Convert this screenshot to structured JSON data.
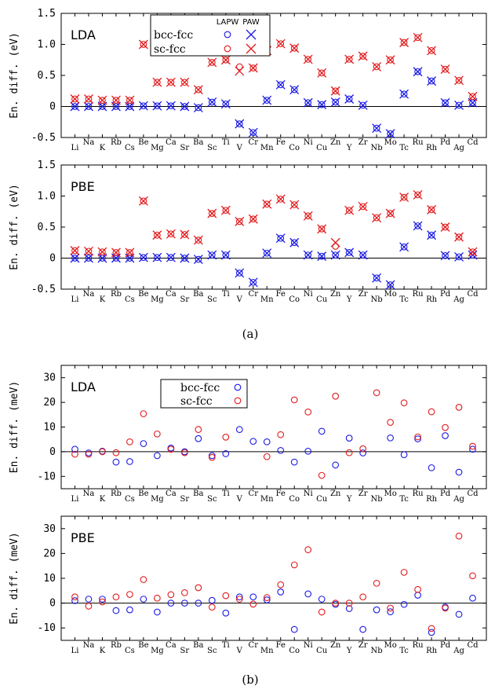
{
  "colors": {
    "blue": "#1a1ae6",
    "red": "#e31a1c",
    "axis": "#000000"
  },
  "captions": {
    "a": "(a)",
    "b": "(b)"
  },
  "chart_data": [
    {
      "type": "scatter",
      "panel": "a-top",
      "title": "LDA",
      "ylabel": "En. diff. (eV)",
      "ylim": [
        -0.5,
        1.5
      ],
      "yticks": [
        -0.5,
        0,
        0.5,
        1.0,
        1.5
      ],
      "ytick_labels": [
        "-0.5",
        "0",
        "0.5",
        "1.0",
        "1.5"
      ],
      "categories": [
        "Li",
        "Na",
        "K",
        "Rb",
        "Cs",
        "Be",
        "Mg",
        "Ca",
        "Sr",
        "Ba",
        "Sc",
        "Ti",
        "V",
        "Cr",
        "Mn",
        "Fe",
        "Co",
        "Ni",
        "Cu",
        "Zn",
        "Y",
        "Zr",
        "Nb",
        "Mo",
        "Tc",
        "Ru",
        "Rh",
        "Pd",
        "Ag",
        "Cd"
      ],
      "legend": {
        "headers": [
          "LAPW",
          "PAW"
        ],
        "entries": [
          "bcc-fcc",
          "sc-fcc"
        ],
        "position": "top-center"
      },
      "series": [
        {
          "name": "bcc-fcc",
          "method": "LAPW",
          "marker": "circle",
          "color": "blue",
          "values": [
            0.0,
            0.0,
            0.0,
            0.0,
            0.0,
            0.01,
            0.01,
            0.01,
            0.0,
            -0.02,
            0.07,
            0.04,
            -0.28,
            -0.42,
            0.1,
            0.35,
            0.27,
            0.06,
            0.03,
            0.07,
            0.12,
            0.02,
            -0.35,
            -0.44,
            0.2,
            0.56,
            0.41,
            0.06,
            0.02,
            0.06
          ]
        },
        {
          "name": "bcc-fcc",
          "method": "PAW",
          "marker": "x",
          "color": "blue",
          "values": [
            0.0,
            0.0,
            0.0,
            0.0,
            0.0,
            0.01,
            0.01,
            0.01,
            0.0,
            -0.02,
            0.07,
            0.04,
            -0.28,
            -0.42,
            0.1,
            0.35,
            0.27,
            0.06,
            0.03,
            0.07,
            0.12,
            0.02,
            -0.35,
            -0.44,
            0.2,
            0.56,
            0.41,
            0.06,
            0.02,
            0.06
          ]
        },
        {
          "name": "sc-fcc",
          "method": "LAPW",
          "marker": "circle",
          "color": "red",
          "values": [
            0.12,
            0.12,
            0.1,
            0.1,
            0.1,
            1.0,
            0.39,
            0.39,
            0.39,
            0.27,
            0.71,
            0.75,
            0.64,
            0.62,
            0.9,
            1.01,
            0.94,
            0.76,
            0.54,
            0.25,
            0.76,
            0.81,
            0.64,
            0.75,
            1.03,
            1.11,
            0.9,
            0.6,
            0.42,
            0.16
          ]
        },
        {
          "name": "sc-fcc",
          "method": "PAW",
          "marker": "x",
          "color": "red",
          "values": [
            0.12,
            0.12,
            0.1,
            0.1,
            0.1,
            1.0,
            0.39,
            0.39,
            0.39,
            0.27,
            0.71,
            0.75,
            0.57,
            0.62,
            0.9,
            1.01,
            0.94,
            0.76,
            0.54,
            0.25,
            0.76,
            0.81,
            0.64,
            0.75,
            1.03,
            1.11,
            0.9,
            0.6,
            0.42,
            0.16
          ]
        }
      ]
    },
    {
      "type": "scatter",
      "panel": "a-bottom",
      "title": "PBE",
      "ylabel": "En. diff. (eV)",
      "ylim": [
        -0.5,
        1.5
      ],
      "yticks": [
        -0.5,
        0,
        0.5,
        1.0,
        1.5
      ],
      "ytick_labels": [
        "-0.5",
        "0",
        "0.5",
        "1.0",
        "1.5"
      ],
      "categories": [
        "Li",
        "Na",
        "K",
        "Rb",
        "Cs",
        "Be",
        "Mg",
        "Ca",
        "Sr",
        "Ba",
        "Sc",
        "Ti",
        "V",
        "Cr",
        "Mn",
        "Fe",
        "Co",
        "Ni",
        "Cu",
        "Zn",
        "Y",
        "Zr",
        "Nb",
        "Mo",
        "Tc",
        "Ru",
        "Rh",
        "Pd",
        "Ag",
        "Cd"
      ],
      "series": [
        {
          "name": "bcc-fcc",
          "method": "LAPW",
          "marker": "circle",
          "color": "blue",
          "values": [
            0.0,
            0.0,
            0.0,
            0.0,
            0.0,
            0.01,
            0.01,
            0.01,
            0.0,
            -0.02,
            0.05,
            0.05,
            -0.24,
            -0.39,
            0.08,
            0.32,
            0.25,
            0.05,
            0.03,
            0.05,
            0.09,
            0.05,
            -0.32,
            -0.43,
            0.18,
            0.52,
            0.37,
            0.04,
            0.02,
            0.05
          ]
        },
        {
          "name": "bcc-fcc",
          "method": "PAW",
          "marker": "x",
          "color": "blue",
          "values": [
            0.0,
            0.0,
            0.0,
            0.0,
            0.0,
            0.01,
            0.01,
            0.01,
            0.0,
            -0.02,
            0.05,
            0.05,
            -0.24,
            -0.39,
            0.08,
            0.32,
            0.25,
            0.05,
            0.03,
            0.05,
            0.09,
            0.05,
            -0.32,
            -0.43,
            0.18,
            0.52,
            0.37,
            0.04,
            0.02,
            0.05
          ]
        },
        {
          "name": "sc-fcc",
          "method": "LAPW",
          "marker": "circle",
          "color": "red",
          "values": [
            0.12,
            0.11,
            0.1,
            0.09,
            0.09,
            0.92,
            0.37,
            0.39,
            0.38,
            0.29,
            0.72,
            0.77,
            0.59,
            0.63,
            0.87,
            0.95,
            0.86,
            0.68,
            0.47,
            0.19,
            0.77,
            0.83,
            0.65,
            0.72,
            0.98,
            1.02,
            0.78,
            0.5,
            0.34,
            0.1
          ]
        },
        {
          "name": "sc-fcc",
          "method": "PAW",
          "marker": "x",
          "color": "red",
          "values": [
            0.12,
            0.11,
            0.1,
            0.09,
            0.09,
            0.92,
            0.37,
            0.39,
            0.38,
            0.29,
            0.72,
            0.77,
            0.59,
            0.63,
            0.87,
            0.95,
            0.86,
            0.68,
            0.47,
            0.25,
            0.77,
            0.83,
            0.65,
            0.72,
            0.98,
            1.02,
            0.78,
            0.5,
            0.34,
            0.1
          ]
        }
      ]
    },
    {
      "type": "scatter",
      "panel": "b-top",
      "title": "LDA",
      "ylabel": "En. diff. (meV)",
      "ylim": [
        -15,
        35
      ],
      "yticks": [
        -10,
        0,
        10,
        20,
        30
      ],
      "ytick_labels": [
        "-10",
        "0",
        "10",
        "20",
        "30"
      ],
      "categories": [
        "Li",
        "Na",
        "K",
        "Rb",
        "Cs",
        "Be",
        "Mg",
        "Ca",
        "Sr",
        "Ba",
        "Sc",
        "Ti",
        "V",
        "Cr",
        "Mn",
        "Fe",
        "Co",
        "Ni",
        "Cu",
        "Zn",
        "Y",
        "Zr",
        "Nb",
        "Mo",
        "Tc",
        "Ru",
        "Rh",
        "Pd",
        "Ag",
        "Cd"
      ],
      "legend": {
        "entries": [
          "bcc-fcc",
          "sc-fcc"
        ],
        "position": "top-center"
      },
      "series": [
        {
          "name": "bcc-fcc",
          "marker": "circle",
          "color": "blue",
          "values": [
            1.0,
            -0.5,
            0.2,
            -4.2,
            -4.0,
            3.3,
            -1.6,
            1.5,
            0.0,
            5.3,
            -1.6,
            -0.8,
            9.0,
            4.2,
            4.0,
            0.5,
            -4.2,
            0.2,
            8.3,
            -5.4,
            5.5,
            -0.5,
            null,
            5.6,
            -1.2,
            5.2,
            -6.5,
            6.5,
            -8.3,
            1.0
          ]
        },
        {
          "name": "sc-fcc",
          "marker": "circle",
          "color": "red",
          "values": [
            -1.0,
            -1.0,
            0.0,
            -0.4,
            4.0,
            15.4,
            7.2,
            1.0,
            -0.4,
            9.0,
            -2.3,
            5.9,
            null,
            null,
            -2.0,
            6.9,
            21.0,
            16.1,
            -9.6,
            22.5,
            -0.4,
            1.2,
            23.9,
            11.9,
            19.8,
            6.0,
            16.2,
            9.8,
            18.0,
            2.2
          ]
        }
      ]
    },
    {
      "type": "scatter",
      "panel": "b-bottom",
      "title": "PBE",
      "ylabel": "En. diff. (meV)",
      "ylim": [
        -15,
        35
      ],
      "yticks": [
        -10,
        0,
        10,
        20,
        30
      ],
      "ytick_labels": [
        "-10",
        "0",
        "10",
        "20",
        "30"
      ],
      "categories": [
        "Li",
        "Na",
        "K",
        "Rb",
        "Cs",
        "Be",
        "Mg",
        "Ca",
        "Sr",
        "Ba",
        "Sc",
        "Ti",
        "V",
        "Cr",
        "Mn",
        "Fe",
        "Co",
        "Ni",
        "Cu",
        "Zn",
        "Y",
        "Zr",
        "Nb",
        "Mo",
        "Tc",
        "Ru",
        "Rh",
        "Pd",
        "Ag",
        "Cd"
      ],
      "series": [
        {
          "name": "bcc-fcc",
          "marker": "circle",
          "color": "blue",
          "values": [
            1.0,
            1.6,
            1.6,
            -3.0,
            -2.7,
            1.6,
            -3.6,
            0.0,
            0.0,
            0.0,
            1.1,
            -4.0,
            2.5,
            2.5,
            1.3,
            4.5,
            -10.6,
            3.7,
            1.6,
            -0.5,
            -2.2,
            -10.6,
            -2.7,
            -3.5,
            -0.5,
            3.2,
            -11.8,
            -1.6,
            -4.5,
            2.0
          ]
        },
        {
          "name": "sc-fcc",
          "marker": "circle",
          "color": "red",
          "values": [
            2.5,
            -1.2,
            0.5,
            2.5,
            3.5,
            9.5,
            2.0,
            3.4,
            4.2,
            6.2,
            -1.6,
            3.0,
            1.6,
            -0.4,
            2.2,
            7.4,
            15.4,
            21.5,
            -3.6,
            0.0,
            0.0,
            2.5,
            8.0,
            -2.0,
            12.4,
            5.5,
            -10.2,
            -2.0,
            27.0,
            11.0
          ]
        }
      ]
    }
  ]
}
